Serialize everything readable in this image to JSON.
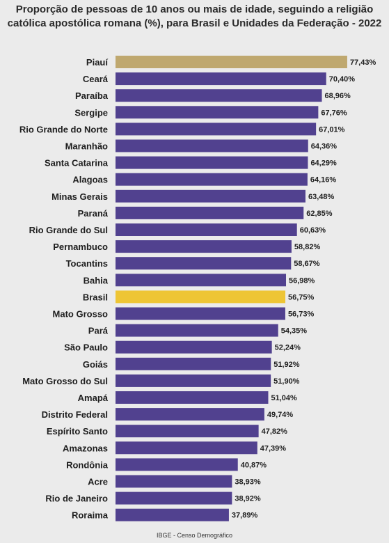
{
  "title_line1": "Proporção de pessoas de 10 anos ou mais de idade, seguindo a religião",
  "title_line2": "católica apostólica romana (%), para Brasil e Unidades da Federação - 2022",
  "source": "IBGE - Censo Demográfico",
  "colors": {
    "bar_default": "#51418f",
    "bar_highlight_top": "#bfa86f",
    "bar_brasil": "#eec535",
    "label_text": "#1e1e1e",
    "background": "#ebebeb"
  },
  "chart_data": {
    "type": "bar",
    "orientation": "horizontal",
    "title": "Proporção de pessoas de 10 anos ou mais de idade, seguindo a religião católica apostólica romana (%), para Brasil e Unidades da Federação - 2022",
    "xlabel": "",
    "ylabel": "",
    "xlim": [
      0,
      80
    ],
    "grid": false,
    "categories": [
      "Piauí",
      "Ceará",
      "Paraíba",
      "Sergipe",
      "Rio Grande do Norte",
      "Maranhão",
      "Santa Catarina",
      "Alagoas",
      "Minas Gerais",
      "Paraná",
      "Rio Grande do Sul",
      "Pernambuco",
      "Tocantins",
      "Bahia",
      "Brasil",
      "Mato Grosso",
      "Pará",
      "São Paulo",
      "Goiás",
      "Mato Grosso do Sul",
      "Amapá",
      "Distrito Federal",
      "Espírito Santo",
      "Amazonas",
      "Rondônia",
      "Acre",
      "Rio de Janeiro",
      "Roraima"
    ],
    "values": [
      77.43,
      70.4,
      68.96,
      67.76,
      67.01,
      64.36,
      64.29,
      64.16,
      63.48,
      62.85,
      60.63,
      58.82,
      58.67,
      56.98,
      56.75,
      56.73,
      54.35,
      52.24,
      51.92,
      51.9,
      51.04,
      49.74,
      47.82,
      47.39,
      40.87,
      38.93,
      38.92,
      37.89
    ],
    "value_labels": [
      "77,43%",
      "70,40%",
      "68,96%",
      "67,76%",
      "67,01%",
      "64,36%",
      "64,29%",
      "64,16%",
      "63,48%",
      "62,85%",
      "60,63%",
      "58,82%",
      "58,67%",
      "56,98%",
      "56,75%",
      "56,73%",
      "54,35%",
      "52,24%",
      "51,92%",
      "51,90%",
      "51,04%",
      "49,74%",
      "47,82%",
      "47,39%",
      "40,87%",
      "38,93%",
      "38,92%",
      "37,89%"
    ],
    "highlight": {
      "Piauí": "bar_highlight_top",
      "Brasil": "bar_brasil"
    }
  }
}
